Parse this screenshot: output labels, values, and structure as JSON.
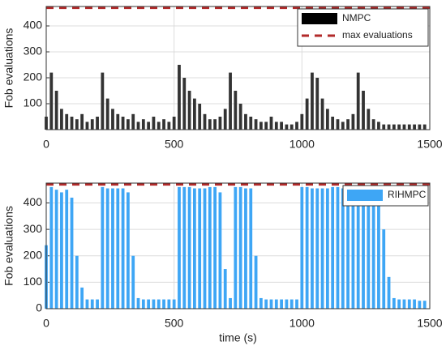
{
  "chart_data": [
    {
      "type": "bar",
      "ylabel": "Fob evaluations",
      "x": [
        0,
        20,
        40,
        60,
        80,
        100,
        120,
        140,
        160,
        180,
        200,
        220,
        240,
        260,
        280,
        300,
        320,
        340,
        360,
        380,
        400,
        420,
        440,
        460,
        480,
        500,
        520,
        540,
        560,
        580,
        600,
        620,
        640,
        660,
        680,
        700,
        720,
        740,
        760,
        780,
        800,
        820,
        840,
        860,
        880,
        900,
        920,
        940,
        960,
        980,
        1000,
        1020,
        1040,
        1060,
        1080,
        1100,
        1120,
        1140,
        1160,
        1180,
        1200,
        1220,
        1240,
        1260,
        1280,
        1300,
        1320,
        1340,
        1360,
        1380,
        1400,
        1420,
        1440,
        1460,
        1480
      ],
      "series": [
        {
          "name": "NMPC",
          "color": "#333333",
          "legend_color": "#000000",
          "values": [
            50,
            220,
            150,
            80,
            60,
            50,
            40,
            60,
            30,
            40,
            50,
            220,
            120,
            80,
            60,
            50,
            40,
            60,
            30,
            40,
            30,
            50,
            30,
            40,
            30,
            50,
            250,
            200,
            150,
            120,
            100,
            60,
            40,
            40,
            50,
            80,
            220,
            150,
            100,
            60,
            50,
            40,
            30,
            30,
            50,
            30,
            30,
            20,
            20,
            30,
            60,
            120,
            220,
            200,
            120,
            80,
            50,
            40,
            30,
            40,
            60,
            220,
            150,
            80,
            40,
            30,
            20,
            20,
            20,
            20,
            20,
            20,
            20,
            20,
            20
          ]
        }
      ],
      "reference_line": {
        "name": "max evaluations",
        "value": 470,
        "color": "#b22a2a"
      },
      "xlim": [
        0,
        1500
      ],
      "xticks": [
        0,
        500,
        1000,
        1500
      ],
      "ylim": [
        0,
        475
      ],
      "yticks": [
        100,
        200,
        300,
        400
      ],
      "grid": true,
      "legend": "upper right"
    },
    {
      "type": "bar",
      "ylabel": "Fob evaluations",
      "xlabel": "time (s)",
      "x": [
        0,
        20,
        40,
        60,
        80,
        100,
        120,
        140,
        160,
        180,
        200,
        220,
        240,
        260,
        280,
        300,
        320,
        340,
        360,
        380,
        400,
        420,
        440,
        460,
        480,
        500,
        520,
        540,
        560,
        580,
        600,
        620,
        640,
        660,
        680,
        700,
        720,
        740,
        760,
        780,
        800,
        820,
        840,
        860,
        880,
        900,
        920,
        940,
        960,
        980,
        1000,
        1020,
        1040,
        1060,
        1080,
        1100,
        1120,
        1140,
        1160,
        1180,
        1200,
        1220,
        1240,
        1260,
        1280,
        1300,
        1320,
        1340,
        1360,
        1380,
        1400,
        1420,
        1440,
        1460,
        1480
      ],
      "series": [
        {
          "name": "RIHMPC",
          "color": "#3ea6f5",
          "legend_color": "#3ea6f5",
          "values": [
            240,
            460,
            450,
            440,
            450,
            420,
            200,
            80,
            35,
            35,
            35,
            460,
            455,
            455,
            455,
            455,
            440,
            200,
            40,
            35,
            35,
            35,
            35,
            35,
            35,
            35,
            460,
            460,
            460,
            455,
            455,
            455,
            460,
            460,
            440,
            150,
            40,
            460,
            460,
            455,
            455,
            200,
            40,
            35,
            35,
            35,
            35,
            35,
            35,
            35,
            460,
            460,
            455,
            455,
            455,
            455,
            460,
            460,
            455,
            460,
            455,
            460,
            455,
            460,
            455,
            440,
            300,
            120,
            40,
            35,
            35,
            35,
            35,
            30,
            30
          ]
        }
      ],
      "reference_line": {
        "value": 470,
        "color": "#b22a2a"
      },
      "xlim": [
        0,
        1500
      ],
      "xticks": [
        0,
        500,
        1000,
        1500
      ],
      "ylim": [
        0,
        475
      ],
      "yticks": [
        0,
        100,
        200,
        300,
        400
      ],
      "grid": true,
      "legend": "upper right"
    }
  ]
}
